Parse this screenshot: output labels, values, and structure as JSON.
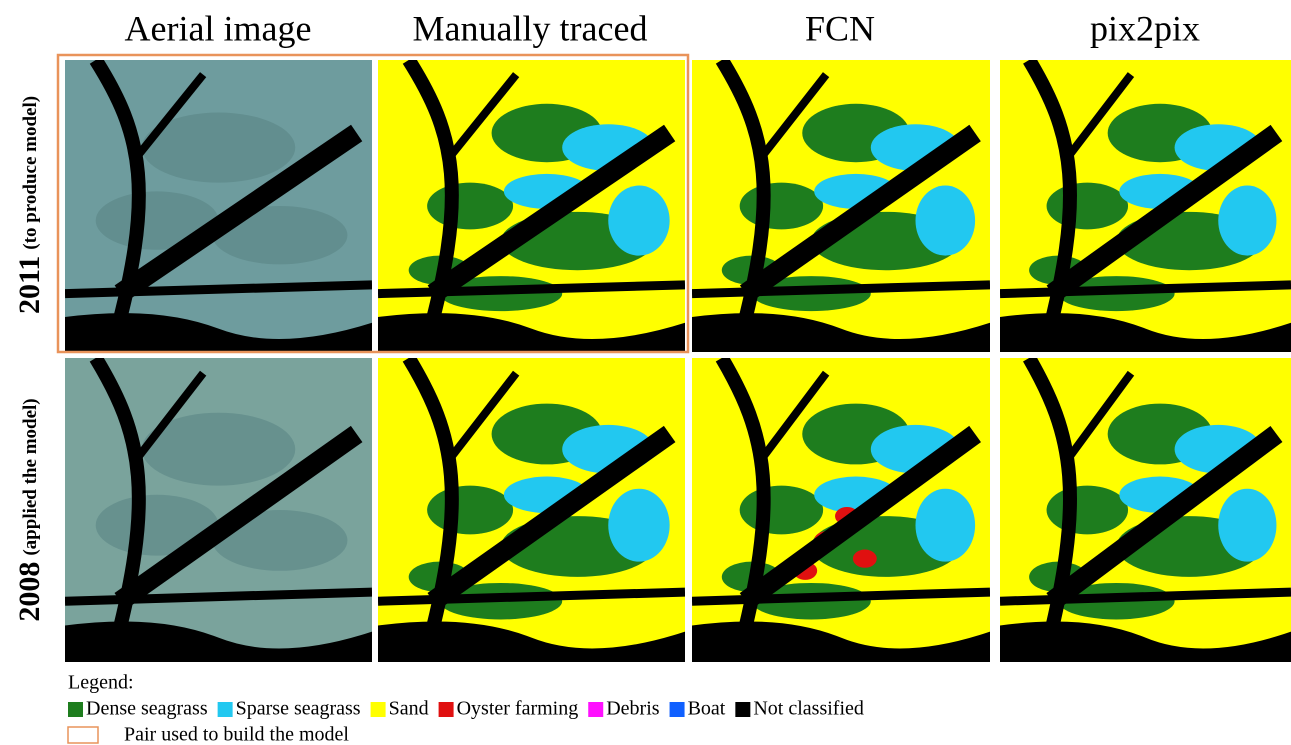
{
  "columns": [
    "Aerial image",
    "Manually traced",
    "FCN",
    "pix2pix"
  ],
  "rows": [
    {
      "year": "2011",
      "note": "(to produce model)"
    },
    {
      "year": "2008",
      "note": "(applied the model)"
    }
  ],
  "legend": {
    "title": "Legend:",
    "items": [
      {
        "label": "Dense seagrass",
        "color": "#1e7d1e"
      },
      {
        "label": "Sparse seagrass",
        "color": "#22c8f0"
      },
      {
        "label": "Sand",
        "color": "#ffff00"
      },
      {
        "label": "Oyster farming",
        "color": "#e01010"
      },
      {
        "label": "Debris",
        "color": "#ff10ff"
      },
      {
        "label": "Boat",
        "color": "#1060ff"
      },
      {
        "label": "Not classified",
        "color": "#000000"
      }
    ],
    "pair_label": "Pair used to build the model"
  }
}
